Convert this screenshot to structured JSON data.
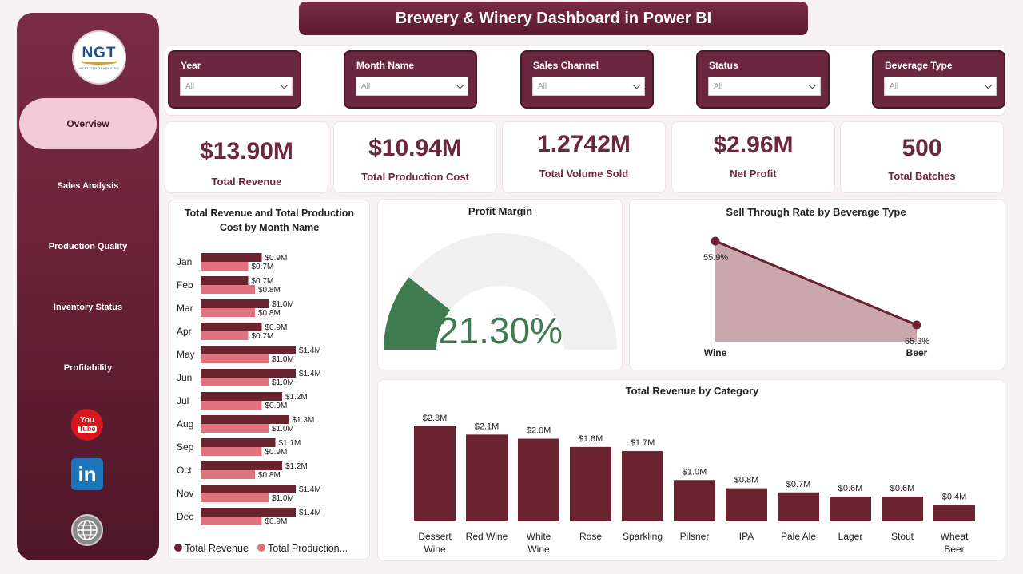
{
  "title": "Brewery & Winery Dashboard in Power BI",
  "logo": {
    "mark": "NGT",
    "tagline": "NEXT GEN TEMPLATES"
  },
  "nav": [
    {
      "label": "Overview",
      "active": true
    },
    {
      "label": "Sales Analysis"
    },
    {
      "label": "Production Quality"
    },
    {
      "label": "Inventory Status"
    },
    {
      "label": "Profitability"
    }
  ],
  "social": {
    "youtube_top": "You",
    "youtube_bottom": "Tube",
    "linkedin": "in"
  },
  "filters": [
    {
      "label": "Year",
      "value": "All"
    },
    {
      "label": "Month Name",
      "value": "All"
    },
    {
      "label": "Sales Channel",
      "value": "All"
    },
    {
      "label": "Status",
      "value": "All"
    },
    {
      "label": "Beverage Type",
      "value": "All"
    }
  ],
  "kpis": [
    {
      "value": "$13.90M",
      "label": "Total Revenue"
    },
    {
      "value": "$10.94M",
      "label": "Total Production Cost"
    },
    {
      "value": "1.2742M",
      "label": "Total Volume Sold"
    },
    {
      "value": "$2.96M",
      "label": "Net Profit"
    },
    {
      "value": "500",
      "label": "Total Batches"
    }
  ],
  "colors": {
    "maroon": "#6b2330",
    "pink": "#e1737f",
    "gauge": "#3e7b4f",
    "gauge_bg": "#f0f0f0",
    "area": "#c9a7ab"
  },
  "chart_data": [
    {
      "type": "bar",
      "orientation": "horizontal",
      "title": "Total Revenue and Total Production Cost by Month Name",
      "categories": [
        "Jan",
        "Feb",
        "Mar",
        "Apr",
        "May",
        "Jun",
        "Jul",
        "Aug",
        "Sep",
        "Oct",
        "Nov",
        "Dec"
      ],
      "series": [
        {
          "name": "Total Revenue",
          "values": [
            0.9,
            0.7,
            1.0,
            0.9,
            1.4,
            1.4,
            1.2,
            1.3,
            1.1,
            1.2,
            1.4,
            1.4
          ],
          "labels": [
            "$0.9M",
            "$0.7M",
            "$1.0M",
            "$0.9M",
            "$1.4M",
            "$1.4M",
            "$1.2M",
            "$1.3M",
            "$1.1M",
            "$1.2M",
            "$1.4M",
            "$1.4M"
          ]
        },
        {
          "name": "Total Production...",
          "values": [
            0.7,
            0.8,
            0.8,
            0.7,
            1.0,
            1.0,
            0.9,
            1.0,
            0.9,
            0.8,
            1.0,
            0.9
          ],
          "labels": [
            "$0.7M",
            "$0.8M",
            "$0.8M",
            "$0.7M",
            "$1.0M",
            "$1.0M",
            "$0.9M",
            "$1.0M",
            "$0.9M",
            "$0.8M",
            "$1.0M",
            "$0.9M"
          ]
        }
      ],
      "legend": "bottom"
    },
    {
      "type": "gauge",
      "title": "Profit Margin",
      "value": 21.3,
      "value_label": "21.30%",
      "max": 100
    },
    {
      "type": "area",
      "title": "Sell Through Rate by Beverage Type",
      "categories": [
        "Wine",
        "Beer"
      ],
      "values": [
        55.9,
        55.3
      ],
      "labels": [
        "55.9%",
        "55.3%"
      ]
    },
    {
      "type": "bar",
      "title": "Total Revenue by Category",
      "categories": [
        [
          "Dessert",
          "Wine"
        ],
        [
          "Red Wine"
        ],
        [
          "White",
          "Wine"
        ],
        [
          "Rose"
        ],
        [
          "Sparkling"
        ],
        [
          "Pilsner"
        ],
        [
          "IPA"
        ],
        [
          "Pale Ale"
        ],
        [
          "Lager"
        ],
        [
          "Stout"
        ],
        [
          "Wheat",
          "Beer"
        ]
      ],
      "values": [
        2.3,
        2.1,
        2.0,
        1.8,
        1.7,
        1.0,
        0.8,
        0.7,
        0.6,
        0.6,
        0.4
      ],
      "labels": [
        "$2.3M",
        "$2.1M",
        "$2.0M",
        "$1.8M",
        "$1.7M",
        "$1.0M",
        "$0.8M",
        "$0.7M",
        "$0.6M",
        "$0.6M",
        "$0.4M"
      ]
    }
  ]
}
